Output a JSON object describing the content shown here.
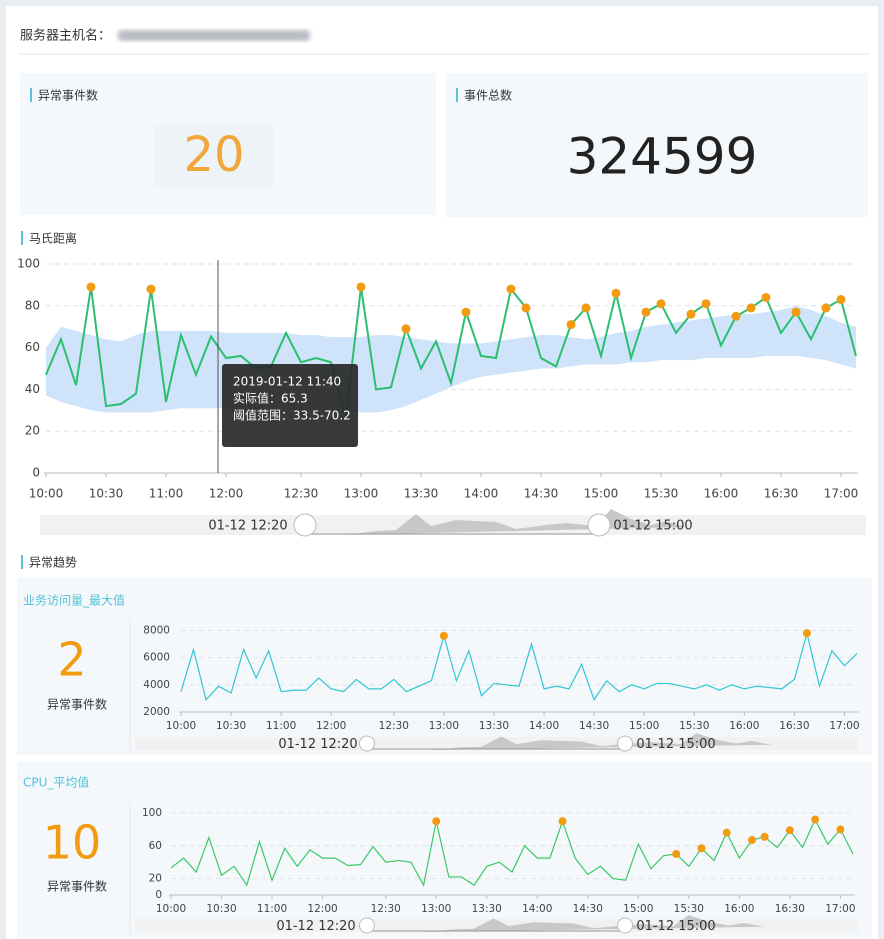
{
  "header": {
    "label": "服务器主机名："
  },
  "cards": [
    {
      "title": "异常事件数",
      "value": 20
    },
    {
      "title": "事件总数",
      "value": 324599
    }
  ],
  "sections": [
    "马氏距离",
    "异常趋势"
  ],
  "chart_data": [
    {
      "type": "line",
      "categories": [
        "10:00",
        null,
        null,
        null,
        "10:30",
        null,
        null,
        null,
        "11:00",
        null,
        null,
        null,
        "12:00",
        null,
        null,
        null,
        null,
        "12:30",
        null,
        null,
        null,
        "13:00",
        null,
        null,
        null,
        "13:30",
        null,
        null,
        null,
        "14:00",
        null,
        null,
        null,
        "14:30",
        null,
        null,
        null,
        "15:00",
        null,
        null,
        null,
        "15:30",
        null,
        null,
        null,
        "16:00",
        null,
        null,
        null,
        "16:30",
        null,
        null,
        null,
        "17:00",
        null
      ],
      "series": [
        {
          "color": "#2bbf6f",
          "values": [
            47,
            64,
            42,
            89,
            32,
            33,
            38,
            88,
            34,
            66,
            47,
            65.3,
            55,
            56,
            50,
            51,
            67,
            53,
            55,
            53,
            27,
            89,
            40,
            41,
            69,
            50,
            63,
            43,
            77,
            56,
            55,
            88,
            79,
            55,
            51,
            71,
            79,
            56,
            86,
            55,
            77,
            81,
            67,
            76,
            81,
            61,
            75,
            79,
            84,
            67,
            77,
            64,
            79,
            83,
            56
          ]
        }
      ],
      "band": {
        "color": "#cfe4fa",
        "upper": [
          60,
          70,
          68,
          66,
          64,
          63,
          66,
          68,
          68,
          68,
          68,
          68,
          67,
          67,
          67,
          67,
          67,
          66,
          66,
          65,
          65,
          65,
          66,
          66,
          65,
          64,
          63,
          62,
          62,
          62,
          63,
          64,
          65,
          66,
          66,
          65,
          64,
          65,
          67,
          68,
          70,
          71,
          72,
          73,
          74,
          75,
          76,
          76,
          77,
          78,
          80,
          78,
          75,
          72,
          70
        ],
        "lower": [
          37,
          34,
          32,
          30,
          29,
          29,
          29,
          29,
          30,
          31,
          31,
          31,
          31,
          31,
          31,
          31,
          31,
          31,
          30,
          30,
          29,
          29,
          29,
          30,
          32,
          35,
          38,
          41,
          44,
          46,
          47,
          48,
          49,
          50,
          50,
          51,
          52,
          52,
          52,
          53,
          53,
          54,
          54,
          54,
          55,
          55,
          55,
          55,
          56,
          56,
          56,
          55,
          54,
          52,
          50
        ]
      },
      "anomalies": [
        3,
        7,
        21,
        24,
        28,
        31,
        32,
        35,
        36,
        38,
        40,
        41,
        43,
        44,
        46,
        47,
        48,
        50,
        52,
        53
      ],
      "anomaly_color": "#f29b11",
      "ylim": [
        0,
        100
      ],
      "yticks": [
        0,
        20,
        40,
        60,
        80,
        100
      ],
      "grid": true,
      "tooltip": {
        "lines": [
          "2019-01-12  11:40",
          "实际值：65.3",
          "阈值范围：33.5-70.2"
        ]
      },
      "range": [
        "01-12 12:20",
        "01-12 15:00"
      ]
    },
    {
      "type": "line",
      "title": "业务访问量_最大值",
      "count": 2,
      "count_label": "异常事件数",
      "categories": [
        "10:00",
        null,
        null,
        null,
        "10:30",
        null,
        null,
        null,
        "11:00",
        null,
        null,
        null,
        "12:00",
        null,
        null,
        null,
        null,
        "12:30",
        null,
        null,
        null,
        "13:00",
        null,
        null,
        null,
        "13:30",
        null,
        null,
        null,
        "14:00",
        null,
        null,
        null,
        "14:30",
        null,
        null,
        null,
        "15:00",
        null,
        null,
        null,
        "15:30",
        null,
        null,
        null,
        "16:00",
        null,
        null,
        null,
        "16:30",
        null,
        null,
        null,
        "17:00",
        null
      ],
      "series": [
        {
          "color": "#33c6d4",
          "values": [
            3500,
            6600,
            2900,
            3900,
            3400,
            6600,
            4500,
            6500,
            3500,
            3600,
            3600,
            4500,
            3700,
            3500,
            4400,
            3700,
            3700,
            4400,
            3500,
            3900,
            4300,
            7600,
            4300,
            6500,
            3200,
            4100,
            4000,
            3900,
            7000,
            3700,
            3900,
            3700,
            5500,
            2900,
            4300,
            3500,
            4000,
            3700,
            4100,
            4100,
            3900,
            3700,
            4000,
            3600,
            4000,
            3700,
            3900,
            3800,
            3700,
            4400,
            7800,
            3900,
            6500,
            5400,
            6300
          ]
        }
      ],
      "anomalies": [
        21,
        50
      ],
      "anomaly_color": "#f29b11",
      "ylim": [
        2000,
        8400
      ],
      "yticks": [
        2000,
        4000,
        6000,
        8000
      ],
      "grid": true,
      "range": [
        "01-12 12:20",
        "01-12 15:00"
      ]
    },
    {
      "type": "line",
      "title": "CPU_平均值",
      "count": 10,
      "count_label": "异常事件数",
      "categories": [
        "10:00",
        null,
        null,
        null,
        "10:30",
        null,
        null,
        null,
        "11:00",
        null,
        null,
        null,
        "12:00",
        null,
        null,
        null,
        null,
        "12:30",
        null,
        null,
        null,
        "13:00",
        null,
        null,
        null,
        "13:30",
        null,
        null,
        null,
        "14:00",
        null,
        null,
        null,
        "14:30",
        null,
        null,
        null,
        "15:00",
        null,
        null,
        null,
        "15:30",
        null,
        null,
        null,
        "16:00",
        null,
        null,
        null,
        "16:30",
        null,
        null,
        null,
        "17:00",
        null
      ],
      "series": [
        {
          "color": "#3cc76a",
          "values": [
            33,
            45,
            28,
            70,
            24,
            35,
            12,
            65,
            18,
            57,
            35,
            55,
            45,
            45,
            36,
            37,
            59,
            40,
            42,
            40,
            12,
            90,
            22,
            22,
            12,
            35,
            40,
            28,
            60,
            45,
            45,
            90,
            45,
            25,
            35,
            20,
            18,
            62,
            32,
            48,
            50,
            35,
            57,
            42,
            76,
            45,
            67,
            71,
            58,
            79,
            58,
            92,
            62,
            80,
            50
          ]
        }
      ],
      "anomalies": [
        21,
        31,
        40,
        42,
        44,
        46,
        47,
        49,
        51,
        53
      ],
      "anomaly_color": "#f29b11",
      "ylim": [
        0,
        100
      ],
      "yticks": [
        0,
        20,
        60,
        100
      ],
      "grid": true,
      "range": [
        "01-12 12:20",
        "01-12 15:00"
      ]
    }
  ]
}
